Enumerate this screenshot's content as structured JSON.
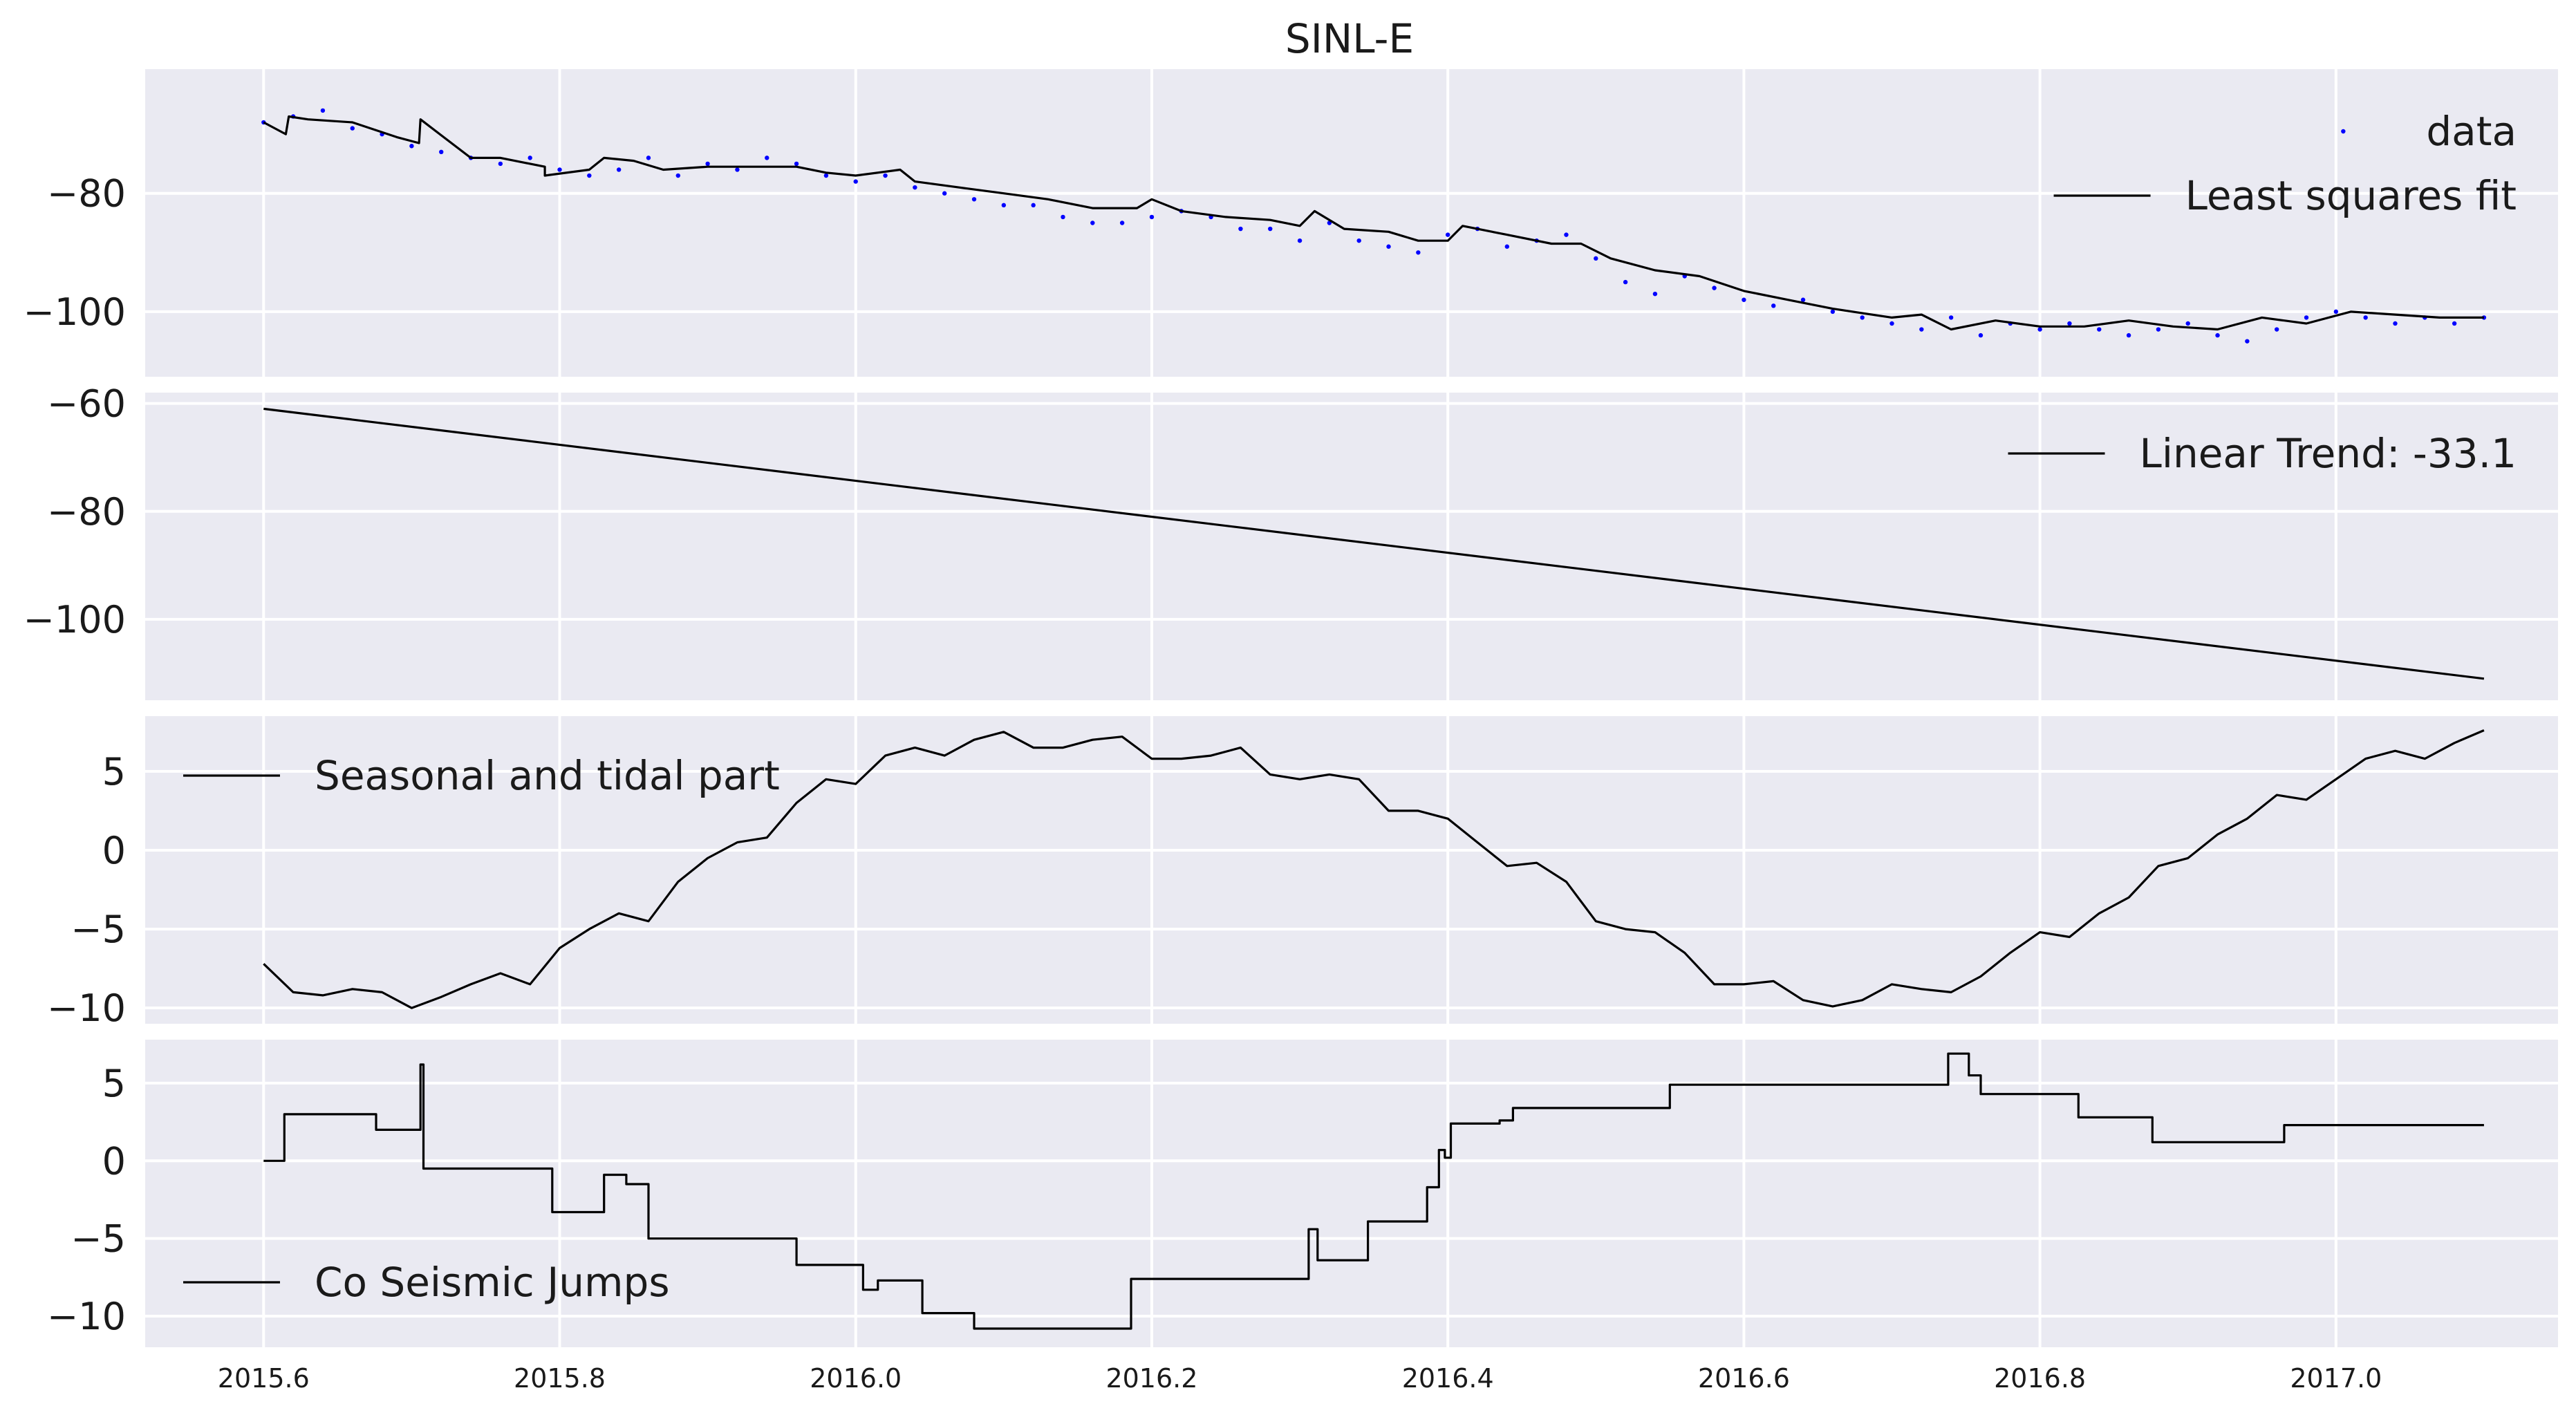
{
  "title": "SINL-E",
  "colors": {
    "panel_bg": "#eaeaf2",
    "grid": "#ffffff",
    "line": "#000000",
    "data_points": "#0000ff"
  },
  "chart_data": [
    {
      "type": "line",
      "title": "SINL-E",
      "xlim": [
        2015.52,
        2017.15
      ],
      "ylim": [
        -111,
        -59
      ],
      "yticks": [
        -80,
        -100
      ],
      "xticks": [
        2015.6,
        2015.8,
        2016.0,
        2016.2,
        2016.4,
        2016.6,
        2016.8,
        2017.0
      ],
      "grid": true,
      "legend_position": "upper right",
      "series": [
        {
          "name": "data",
          "style": "scatter",
          "x": [
            2015.6,
            2015.62,
            2015.64,
            2015.66,
            2015.68,
            2015.7,
            2015.72,
            2015.74,
            2015.76,
            2015.78,
            2015.8,
            2015.82,
            2015.84,
            2015.86,
            2015.88,
            2015.9,
            2015.92,
            2015.94,
            2015.96,
            2015.98,
            2016.0,
            2016.02,
            2016.04,
            2016.06,
            2016.08,
            2016.1,
            2016.12,
            2016.14,
            2016.16,
            2016.18,
            2016.2,
            2016.22,
            2016.24,
            2016.26,
            2016.28,
            2016.3,
            2016.32,
            2016.34,
            2016.36,
            2016.38,
            2016.4,
            2016.42,
            2016.44,
            2016.46,
            2016.48,
            2016.5,
            2016.52,
            2016.54,
            2016.56,
            2016.58,
            2016.6,
            2016.62,
            2016.64,
            2016.66,
            2016.68,
            2016.7,
            2016.72,
            2016.74,
            2016.76,
            2016.78,
            2016.8,
            2016.82,
            2016.84,
            2016.86,
            2016.88,
            2016.9,
            2016.92,
            2016.94,
            2016.96,
            2016.98,
            2017.0,
            2017.02,
            2017.04,
            2017.06,
            2017.08,
            2017.1
          ],
          "y": [
            -68,
            -67,
            -66,
            -69,
            -70,
            -72,
            -73,
            -74,
            -75,
            -74,
            -76,
            -77,
            -76,
            -74,
            -77,
            -75,
            -76,
            -74,
            -75,
            -77,
            -78,
            -77,
            -79,
            -80,
            -81,
            -82,
            -82,
            -84,
            -85,
            -85,
            -84,
            -83,
            -84,
            -86,
            -86,
            -88,
            -85,
            -88,
            -89,
            -90,
            -87,
            -86,
            -89,
            -88,
            -87,
            -91,
            -95,
            -97,
            -94,
            -96,
            -98,
            -99,
            -98,
            -100,
            -101,
            -102,
            -103,
            -101,
            -104,
            -102,
            -103,
            -102,
            -103,
            -104,
            -103,
            -102,
            -104,
            -105,
            -103,
            -101,
            -100,
            -101,
            -102,
            -101,
            -102,
            -101
          ]
        },
        {
          "name": "Least squares fit",
          "style": "line",
          "x": [
            2015.6,
            2015.615,
            2015.617,
            2015.63,
            2015.66,
            2015.69,
            2015.705,
            2015.706,
            2015.74,
            2015.76,
            2015.79,
            2015.79,
            2015.82,
            2015.83,
            2015.85,
            2015.87,
            2015.9,
            2015.93,
            2015.96,
            2015.98,
            2016.0,
            2016.03,
            2016.04,
            2016.07,
            2016.1,
            2016.13,
            2016.16,
            2016.19,
            2016.2,
            2016.22,
            2016.25,
            2016.28,
            2016.3,
            2016.31,
            2016.33,
            2016.36,
            2016.38,
            2016.4,
            2016.41,
            2016.44,
            2016.47,
            2016.49,
            2016.51,
            2016.54,
            2016.57,
            2016.6,
            2016.63,
            2016.66,
            2016.7,
            2016.72,
            2016.74,
            2016.77,
            2016.8,
            2016.83,
            2016.86,
            2016.89,
            2016.92,
            2016.95,
            2016.98,
            2017.01,
            2017.04,
            2017.07,
            2017.1
          ],
          "y": [
            -68,
            -70,
            -67,
            -67.5,
            -68,
            -70.5,
            -71.5,
            -67.5,
            -74,
            -74,
            -75.5,
            -77,
            -76,
            -74,
            -74.5,
            -76,
            -75.5,
            -75.5,
            -75.5,
            -76.5,
            -77,
            -76,
            -78,
            -79,
            -80,
            -81,
            -82.5,
            -82.5,
            -81,
            -83,
            -84,
            -84.5,
            -85.5,
            -83,
            -86,
            -86.5,
            -88,
            -88,
            -85.5,
            -87,
            -88.5,
            -88.5,
            -91,
            -93,
            -94,
            -96.5,
            -98,
            -99.5,
            -101,
            -100.5,
            -103,
            -101.5,
            -102.5,
            -102.5,
            -101.5,
            -102.5,
            -103,
            -101,
            -102,
            -100,
            -100.5,
            -101,
            -101
          ]
        }
      ]
    },
    {
      "type": "line",
      "xlim": [
        2015.52,
        2017.15
      ],
      "ylim": [
        -115,
        -58
      ],
      "yticks": [
        -60,
        -80,
        -100
      ],
      "grid": true,
      "legend_position": "upper right",
      "series": [
        {
          "name": "Linear Trend: -33.1",
          "x": [
            2015.6,
            2017.1
          ],
          "y": [
            -61,
            -111
          ]
        }
      ]
    },
    {
      "type": "line",
      "xlim": [
        2015.52,
        2017.15
      ],
      "ylim": [
        -11,
        8.5
      ],
      "yticks": [
        5,
        0,
        -5,
        -10
      ],
      "grid": true,
      "legend_position": "upper left",
      "series": [
        {
          "name": "Seasonal and tidal part",
          "x": [
            2015.6,
            2015.62,
            2015.64,
            2015.66,
            2015.68,
            2015.7,
            2015.72,
            2015.74,
            2015.76,
            2015.78,
            2015.8,
            2015.82,
            2015.84,
            2015.86,
            2015.88,
            2015.9,
            2015.92,
            2015.94,
            2015.96,
            2015.98,
            2016.0,
            2016.02,
            2016.04,
            2016.06,
            2016.08,
            2016.1,
            2016.12,
            2016.14,
            2016.16,
            2016.18,
            2016.2,
            2016.22,
            2016.24,
            2016.26,
            2016.28,
            2016.3,
            2016.32,
            2016.34,
            2016.36,
            2016.38,
            2016.4,
            2016.42,
            2016.44,
            2016.46,
            2016.48,
            2016.5,
            2016.52,
            2016.54,
            2016.56,
            2016.58,
            2016.6,
            2016.62,
            2016.64,
            2016.66,
            2016.68,
            2016.7,
            2016.72,
            2016.74,
            2016.76,
            2016.78,
            2016.8,
            2016.82,
            2016.84,
            2016.86,
            2016.88,
            2016.9,
            2016.92,
            2016.94,
            2016.96,
            2016.98,
            2017.0,
            2017.02,
            2017.04,
            2017.06,
            2017.08,
            2017.1
          ],
          "y": [
            -7.2,
            -9,
            -9.2,
            -8.8,
            -9,
            -10,
            -9.3,
            -8.5,
            -7.8,
            -8.5,
            -6.2,
            -5,
            -4,
            -4.5,
            -2,
            -0.5,
            0.5,
            0.8,
            3,
            4.5,
            4.2,
            6,
            6.5,
            6,
            7,
            7.5,
            6.5,
            6.5,
            7,
            7.2,
            5.8,
            5.8,
            6,
            6.5,
            4.8,
            4.5,
            4.8,
            4.5,
            2.5,
            2.5,
            2,
            0.5,
            -1,
            -0.8,
            -2,
            -4.5,
            -5,
            -5.2,
            -6.5,
            -8.5,
            -8.5,
            -8.3,
            -9.5,
            -9.9,
            -9.5,
            -8.5,
            -8.8,
            -9,
            -8,
            -6.5,
            -5.2,
            -5.5,
            -4,
            -3,
            -1,
            -0.5,
            1,
            2,
            3.5,
            3.2,
            4.5,
            5.8,
            6.3,
            5.8,
            6.8,
            7.6
          ]
        }
      ]
    },
    {
      "type": "line",
      "xlim": [
        2015.52,
        2017.15
      ],
      "ylim": [
        -12,
        7.8
      ],
      "yticks": [
        5,
        0,
        -5,
        -10
      ],
      "grid": true,
      "legend_position": "lower left",
      "series": [
        {
          "name": "Co Seismic Jumps",
          "x": [
            2015.6,
            2015.614,
            2015.614,
            2015.66,
            2015.676,
            2015.676,
            2015.706,
            2015.706,
            2015.708,
            2015.708,
            2015.795,
            2015.795,
            2015.83,
            2015.83,
            2015.845,
            2015.845,
            2015.86,
            2015.86,
            2015.96,
            2015.96,
            2016.005,
            2016.005,
            2016.015,
            2016.015,
            2016.045,
            2016.045,
            2016.08,
            2016.08,
            2016.186,
            2016.186,
            2016.306,
            2016.306,
            2016.312,
            2016.312,
            2016.346,
            2016.346,
            2016.386,
            2016.386,
            2016.394,
            2016.394,
            2016.398,
            2016.398,
            2016.402,
            2016.402,
            2016.435,
            2016.435,
            2016.444,
            2016.444,
            2016.456,
            2016.456,
            2016.464,
            2016.464,
            2016.55,
            2016.55,
            2016.57,
            2016.57,
            2016.738,
            2016.738,
            2016.752,
            2016.752,
            2016.76,
            2016.76,
            2016.826,
            2016.826,
            2016.876,
            2016.876,
            2016.965,
            2016.965,
            2017.1
          ],
          "y": [
            0,
            0,
            3,
            3,
            3,
            2,
            2,
            6.2,
            6.2,
            -0.5,
            -0.5,
            -3.3,
            -3.3,
            -0.9,
            -0.9,
            -1.5,
            -1.5,
            -5,
            -5,
            -6.7,
            -6.7,
            -8.3,
            -8.3,
            -7.7,
            -7.7,
            -9.8,
            -9.8,
            -10.8,
            -10.8,
            -7.6,
            -7.6,
            -4.4,
            -4.4,
            -6.4,
            -6.4,
            -3.9,
            -3.9,
            -1.7,
            -1.7,
            0.7,
            0.7,
            0.2,
            0.2,
            2.4,
            2.4,
            2.6,
            2.6,
            3.4,
            3.4,
            3.4,
            3.4,
            3.4,
            3.4,
            4.9,
            4.9,
            4.9,
            4.9,
            6.9,
            6.9,
            5.5,
            5.5,
            4.3,
            4.3,
            2.8,
            2.8,
            1.2,
            1.2,
            2.3,
            2.3
          ]
        }
      ]
    }
  ]
}
